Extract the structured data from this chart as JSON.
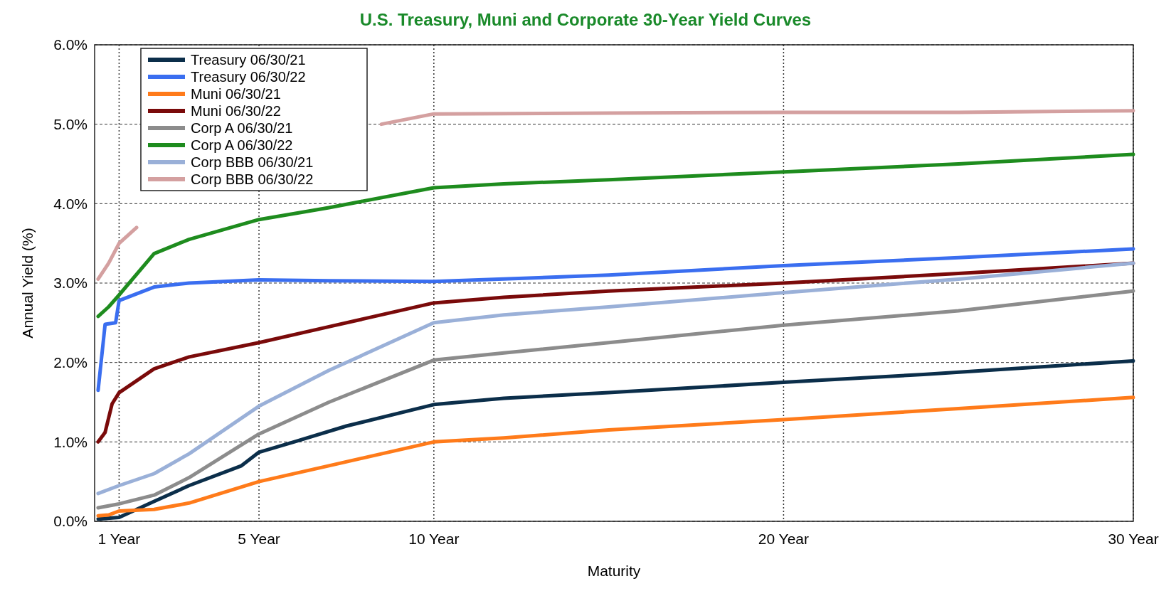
{
  "chart_data": {
    "type": "line",
    "title": "U.S. Treasury, Muni and Corporate 30-Year Yield Curves",
    "xlabel": "Maturity",
    "ylabel": "Annual Yield (%)",
    "xlim": [
      0.3,
      30
    ],
    "xticks": [
      {
        "value": 1,
        "label": "1 Year"
      },
      {
        "value": 5,
        "label": "5 Year"
      },
      {
        "value": 10,
        "label": "10 Year"
      },
      {
        "value": 20,
        "label": "20 Year"
      },
      {
        "value": 30,
        "label": "30 Year"
      }
    ],
    "ylim": [
      0,
      6
    ],
    "yticks": [
      {
        "value": 0,
        "label": "0.0%"
      },
      {
        "value": 1,
        "label": "1.0%"
      },
      {
        "value": 2,
        "label": "2.0%"
      },
      {
        "value": 3,
        "label": "3.0%"
      },
      {
        "value": 4,
        "label": "4.0%"
      },
      {
        "value": 5,
        "label": "5.0%"
      },
      {
        "value": 6,
        "label": "6.0%"
      }
    ],
    "grid": true,
    "legend": "top left",
    "marker": "none",
    "line_style": "solid",
    "series": [
      {
        "name": "Treasury 06/30/21",
        "color": "#0b2e4a",
        "x": [
          0.4,
          1,
          2,
          3,
          4.5,
          5,
          6,
          7.5,
          10,
          12,
          15,
          20,
          24,
          30
        ],
        "values": [
          0.03,
          0.05,
          0.25,
          0.45,
          0.7,
          0.87,
          1.0,
          1.2,
          1.47,
          1.55,
          1.62,
          1.75,
          1.85,
          2.02
        ]
      },
      {
        "name": "Treasury 06/30/22",
        "color": "#3a6ef0",
        "x": [
          0.4,
          0.6,
          0.9,
          1,
          2,
          3,
          5,
          7,
          10,
          15,
          20,
          25,
          30
        ],
        "values": [
          1.65,
          2.48,
          2.5,
          2.78,
          2.95,
          3.0,
          3.04,
          3.03,
          3.02,
          3.1,
          3.22,
          3.32,
          3.43
        ]
      },
      {
        "name": "Muni 06/30/21",
        "color": "#ff7b1a",
        "x": [
          0.4,
          0.7,
          1,
          2,
          3,
          5,
          7,
          10,
          12,
          15,
          20,
          25,
          30
        ],
        "values": [
          0.07,
          0.08,
          0.13,
          0.15,
          0.23,
          0.5,
          0.7,
          1.0,
          1.05,
          1.15,
          1.28,
          1.42,
          1.56
        ]
      },
      {
        "name": "Muni 06/30/22",
        "color": "#7a0a0a",
        "x": [
          0.4,
          0.6,
          0.8,
          1,
          2,
          3,
          5,
          7,
          10,
          12,
          15,
          20,
          25,
          30
        ],
        "values": [
          1.0,
          1.12,
          1.48,
          1.62,
          1.92,
          2.07,
          2.25,
          2.45,
          2.75,
          2.82,
          2.9,
          3.0,
          3.12,
          3.25
        ]
      },
      {
        "name": "Corp A 06/30/21",
        "color": "#8c8c8c",
        "x": [
          0.4,
          1,
          2,
          3,
          5,
          7,
          10,
          12,
          15,
          20,
          25,
          30
        ],
        "values": [
          0.17,
          0.22,
          0.33,
          0.55,
          1.1,
          1.5,
          2.03,
          2.12,
          2.25,
          2.47,
          2.65,
          2.9
        ]
      },
      {
        "name": "Corp A 06/30/22",
        "color": "#1e8c1e",
        "x": [
          0.4,
          0.7,
          1,
          2,
          3,
          5,
          7,
          10,
          12,
          15,
          20,
          25,
          30
        ],
        "values": [
          2.58,
          2.7,
          2.85,
          3.37,
          3.55,
          3.8,
          3.95,
          4.2,
          4.25,
          4.3,
          4.4,
          4.5,
          4.62
        ]
      },
      {
        "name": "Corp BBB 06/30/21",
        "color": "#9ab0d8",
        "x": [
          0.4,
          1,
          2,
          3,
          5,
          7,
          10,
          12,
          15,
          20,
          25,
          30
        ],
        "values": [
          0.35,
          0.45,
          0.6,
          0.85,
          1.45,
          1.9,
          2.5,
          2.6,
          2.7,
          2.88,
          3.05,
          3.25
        ]
      },
      {
        "name": "Corp BBB 06/30/22",
        "color": "#d4a0a0",
        "x": [
          0.4,
          0.7,
          1,
          1.5,
          2,
          3,
          5,
          7,
          8.5,
          10,
          15,
          20,
          25,
          30
        ],
        "values": [
          3.05,
          3.25,
          3.5,
          3.7,
          null,
          null,
          null,
          null,
          5.0,
          5.13,
          5.14,
          5.15,
          5.15,
          5.17
        ]
      }
    ]
  }
}
